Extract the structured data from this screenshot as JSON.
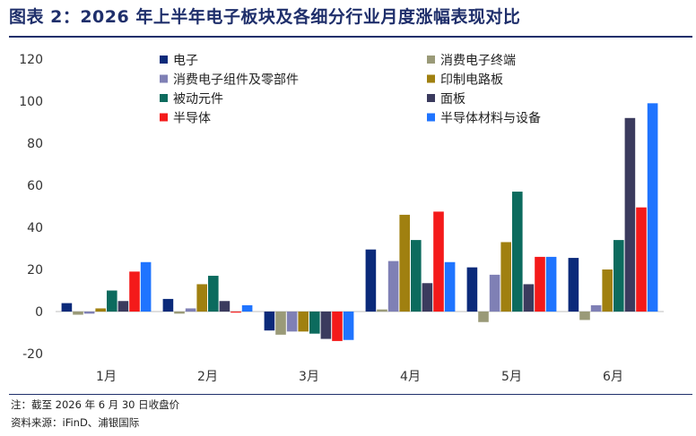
{
  "title": "图表 2：2026 年上半年电子板块及各细分行业月度涨幅表现对比",
  "notes": {
    "note": "注：截至 2026 年 6 月 30 日收盘价",
    "source": "资料来源：iFinD、浦银国际"
  },
  "chart_data": {
    "type": "bar",
    "categories": [
      "1月",
      "2月",
      "3月",
      "4月",
      "5月",
      "6月"
    ],
    "ylim": [
      -20,
      120
    ],
    "yticks": [
      -20,
      0,
      20,
      40,
      60,
      80,
      100,
      120
    ],
    "grid": false,
    "legend_position": "top",
    "series": [
      {
        "name": "电子",
        "color": "#0b2a7a",
        "values": [
          4,
          6,
          -9,
          29.5,
          21,
          25.5
        ]
      },
      {
        "name": "消费电子终端",
        "color": "#9a9a78",
        "values": [
          -1.5,
          -1,
          -11,
          1,
          -5,
          -4
        ]
      },
      {
        "name": "消费电子组件及零部件",
        "color": "#7f80b5",
        "values": [
          -1,
          1.5,
          -9.5,
          24,
          17.5,
          3
        ]
      },
      {
        "name": "印制电路板",
        "color": "#a08010",
        "values": [
          1.5,
          13,
          -9.5,
          46,
          33,
          20
        ]
      },
      {
        "name": "被动元件",
        "color": "#0c6b5e",
        "values": [
          10,
          17,
          -10.5,
          34,
          57,
          34
        ]
      },
      {
        "name": "面板",
        "color": "#3b3b5e",
        "values": [
          5,
          5,
          -13,
          13.5,
          13,
          92
        ]
      },
      {
        "name": "半导体",
        "color": "#f41a1a",
        "values": [
          19,
          -0.5,
          -14,
          47.5,
          26,
          49.5
        ]
      },
      {
        "name": "半导体材料与设备",
        "color": "#1f74ff",
        "values": [
          23.5,
          3,
          -13.5,
          23.5,
          26,
          99
        ]
      }
    ]
  }
}
